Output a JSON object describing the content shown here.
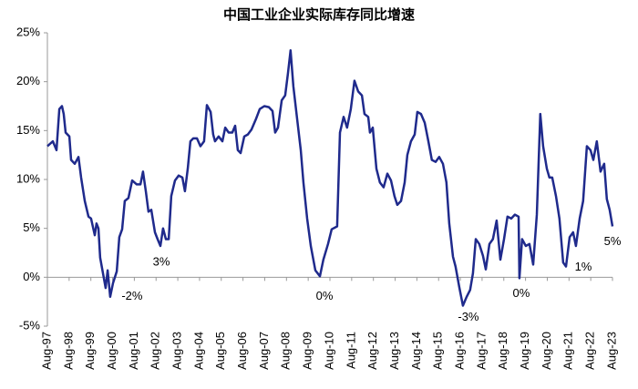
{
  "chart_data": {
    "type": "line",
    "title": "中国工业企业实际库存同比增速",
    "color": "#1f2a8c",
    "grid": false,
    "x": [
      1997.58,
      1997.83,
      1998.0,
      1998.13,
      1998.25,
      1998.33,
      1998.42,
      1998.59,
      1998.67,
      1998.84,
      1999.01,
      1999.13,
      1999.3,
      1999.47,
      1999.59,
      1999.76,
      1999.84,
      1999.93,
      2000.01,
      2000.14,
      2000.26,
      2000.35,
      2000.47,
      2000.6,
      2000.77,
      2000.89,
      2001.02,
      2001.14,
      2001.31,
      2001.48,
      2001.69,
      2001.86,
      2001.98,
      2002.11,
      2002.23,
      2002.36,
      2002.53,
      2002.65,
      2002.78,
      2002.9,
      2003.03,
      2003.16,
      2003.28,
      2003.45,
      2003.62,
      2003.79,
      2003.91,
      2004.04,
      2004.16,
      2004.29,
      2004.46,
      2004.62,
      2004.79,
      2004.92,
      2005.09,
      2005.21,
      2005.29,
      2005.46,
      2005.63,
      2005.76,
      2005.92,
      2006.09,
      2006.22,
      2006.34,
      2006.47,
      2006.64,
      2006.8,
      2006.97,
      2007.18,
      2007.35,
      2007.56,
      2007.77,
      2007.94,
      2008.06,
      2008.19,
      2008.36,
      2008.52,
      2008.65,
      2008.77,
      2008.9,
      2009.07,
      2009.24,
      2009.36,
      2009.53,
      2009.7,
      2009.91,
      2010.12,
      2010.28,
      2010.49,
      2010.66,
      2010.91,
      2011.04,
      2011.21,
      2011.37,
      2011.54,
      2011.71,
      2011.88,
      2012.05,
      2012.17,
      2012.34,
      2012.42,
      2012.55,
      2012.72,
      2012.88,
      2013.05,
      2013.22,
      2013.39,
      2013.55,
      2013.68,
      2013.85,
      2014.02,
      2014.14,
      2014.31,
      2014.48,
      2014.6,
      2014.77,
      2014.94,
      2015.11,
      2015.27,
      2015.44,
      2015.61,
      2015.78,
      2015.94,
      2016.07,
      2016.24,
      2016.36,
      2016.53,
      2016.7,
      2016.87,
      2017.03,
      2017.16,
      2017.29,
      2017.45,
      2017.62,
      2017.75,
      2017.92,
      2018.08,
      2018.25,
      2018.42,
      2018.59,
      2018.75,
      2018.92,
      2019.09,
      2019.26,
      2019.3,
      2019.42,
      2019.59,
      2019.76,
      2019.93,
      2020.1,
      2020.26,
      2020.39,
      2020.56,
      2020.68,
      2020.81,
      2020.98,
      2021.14,
      2021.31,
      2021.44,
      2021.61,
      2021.77,
      2021.9,
      2022.07,
      2022.23,
      2022.4,
      2022.57,
      2022.7,
      2022.86,
      2023.03,
      2023.2,
      2023.32,
      2023.45,
      2023.58
    ],
    "values": [
      13.4,
      13.9,
      13,
      17.2,
      17.5,
      16.7,
      14.8,
      14.4,
      12,
      11.6,
      12.3,
      10.2,
      7.8,
      6.2,
      6,
      4.3,
      5.5,
      5,
      2,
      0.4,
      -1.1,
      0.7,
      -2,
      -0.6,
      0.6,
      4.1,
      4.9,
      7.8,
      8.1,
      9.9,
      9.5,
      9.5,
      10.8,
      8.8,
      6.7,
      6.9,
      4.6,
      3.9,
      3.2,
      5,
      3.9,
      3.9,
      8.3,
      9.9,
      10.4,
      10.2,
      8.8,
      11.1,
      13.9,
      14.2,
      14.2,
      13.4,
      13.9,
      17.6,
      16.9,
      14.6,
      13.9,
      14.4,
      13.9,
      15.3,
      14.8,
      14.8,
      15.5,
      13,
      12.7,
      14.4,
      14.6,
      15.1,
      16.2,
      17.2,
      17.5,
      17.4,
      17,
      14.8,
      15.3,
      18.1,
      18.6,
      20.9,
      23.2,
      19.5,
      16.2,
      13,
      9.7,
      6,
      3.2,
      0.7,
      0.1,
      1.8,
      3.4,
      4.9,
      5.2,
      14.8,
      16.4,
      15.3,
      17.2,
      20.1,
      19,
      18.6,
      16.7,
      16.4,
      14.8,
      15.3,
      11.1,
      9.7,
      9.2,
      10.6,
      9.9,
      8.3,
      7.4,
      7.8,
      9.7,
      12.5,
      13.9,
      14.6,
      16.9,
      16.7,
      15.8,
      13.9,
      12,
      11.8,
      12.3,
      11.6,
      9.7,
      5.5,
      2.1,
      1.1,
      -1,
      -2.9,
      -2,
      -1.3,
      0.4,
      3.9,
      3.4,
      2.2,
      0.8,
      3.4,
      3.9,
      5.8,
      1.8,
      3.9,
      6.2,
      6,
      6.4,
      6.2,
      -0.1,
      3.9,
      3.2,
      3.4,
      1.3,
      6.4,
      16.7,
      13.4,
      11.1,
      10.2,
      10.2,
      8.3,
      6,
      1.5,
      1.1,
      4.1,
      4.6,
      3.2,
      6,
      7.8,
      13.4,
      13,
      12,
      13.9,
      10.8,
      11.6,
      8,
      6.9,
      5.2
    ],
    "xlim": [
      1997.58,
      2023.58
    ],
    "xticks": [
      {
        "value": 1997.58,
        "label": "Aug-97"
      },
      {
        "value": 1998.58,
        "label": "Aug-98"
      },
      {
        "value": 1999.58,
        "label": "Aug-99"
      },
      {
        "value": 2000.58,
        "label": "Aug-00"
      },
      {
        "value": 2001.58,
        "label": "Aug-01"
      },
      {
        "value": 2002.58,
        "label": "Aug-02"
      },
      {
        "value": 2003.58,
        "label": "Aug-03"
      },
      {
        "value": 2004.58,
        "label": "Aug-04"
      },
      {
        "value": 2005.58,
        "label": "Aug-05"
      },
      {
        "value": 2006.58,
        "label": "Aug-06"
      },
      {
        "value": 2007.58,
        "label": "Aug-07"
      },
      {
        "value": 2008.58,
        "label": "Aug-08"
      },
      {
        "value": 2009.58,
        "label": "Aug-09"
      },
      {
        "value": 2010.58,
        "label": "Aug-10"
      },
      {
        "value": 2011.58,
        "label": "Aug-11"
      },
      {
        "value": 2012.58,
        "label": "Aug-12"
      },
      {
        "value": 2013.58,
        "label": "Aug-13"
      },
      {
        "value": 2014.58,
        "label": "Aug-14"
      },
      {
        "value": 2015.58,
        "label": "Aug-15"
      },
      {
        "value": 2016.58,
        "label": "Aug-16"
      },
      {
        "value": 2017.58,
        "label": "Aug-17"
      },
      {
        "value": 2018.58,
        "label": "Aug-18"
      },
      {
        "value": 2019.58,
        "label": "Aug-19"
      },
      {
        "value": 2020.58,
        "label": "Aug-20"
      },
      {
        "value": 2021.58,
        "label": "Aug-21"
      },
      {
        "value": 2022.58,
        "label": "Aug-22"
      },
      {
        "value": 2023.58,
        "label": "Aug-23"
      }
    ],
    "ylim": [
      -5,
      25
    ],
    "yticks": [
      {
        "value": -5,
        "label": "-5%"
      },
      {
        "value": 0,
        "label": "0%"
      },
      {
        "value": 5,
        "label": "5%"
      },
      {
        "value": 10,
        "label": "10%"
      },
      {
        "value": 15,
        "label": "15%"
      },
      {
        "value": 20,
        "label": "20%"
      },
      {
        "value": 25,
        "label": "25%"
      }
    ],
    "annotations": [
      {
        "text": "-2%",
        "x": 2000.47,
        "y": -2
      },
      {
        "text": "3%",
        "x": 2002.78,
        "y": 3
      },
      {
        "text": "0%",
        "x": 2010.12,
        "y": 0
      },
      {
        "text": "-3%",
        "x": 2016.7,
        "y": -3
      },
      {
        "text": "0%",
        "x": 2019.3,
        "y": 0
      },
      {
        "text": "1%",
        "x": 2021.44,
        "y": 1
      },
      {
        "text": "5%",
        "x": 2023.58,
        "y": 5
      }
    ]
  }
}
